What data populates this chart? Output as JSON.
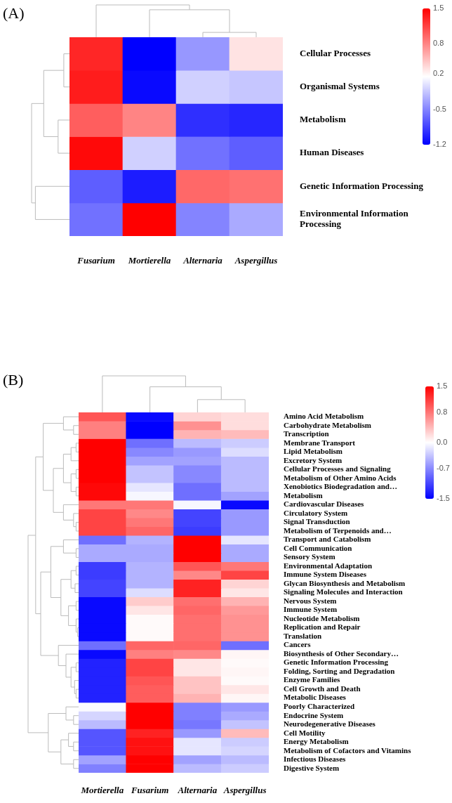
{
  "chart_data": [
    {
      "type": "heatmap",
      "title": "(A)",
      "categories": [
        "Fusarium",
        "Mortierella",
        "Alternaria",
        "Aspergillus"
      ],
      "y_categories": [
        "Cellular Processes",
        "Organismal Systems",
        "Metabolism",
        "Human Diseases",
        "Genetic Information Processing",
        "Environmental Information Processing"
      ],
      "cells": [
        [
          1.3,
          -1.2,
          -0.4,
          0.3
        ],
        [
          1.35,
          -1.15,
          -0.1,
          -0.15
        ],
        [
          1.0,
          0.8,
          -0.95,
          -1.0
        ],
        [
          1.45,
          -0.1,
          -0.6,
          -0.7
        ],
        [
          -0.7,
          -1.05,
          0.95,
          0.9
        ],
        [
          -0.6,
          1.5,
          -0.5,
          -0.3
        ]
      ],
      "clim": [
        -1.2,
        1.5
      ],
      "cticks": [
        -1.2,
        -0.5,
        0.2,
        0.8,
        1.5
      ]
    },
    {
      "type": "heatmap",
      "title": "(B)",
      "categories": [
        "Mortierella",
        "Fusarium",
        "Alternaria",
        "Aspergillus"
      ],
      "y_categories": [
        "Amino Acid Metabolism",
        "Carbohydrate Metabolism",
        "Transcription",
        "Membrane Transport",
        "Lipid Metabolism",
        "Excretory System",
        "Cellular Processes and Signaling",
        "Metabolism of Other Amino Acids",
        "Xenobiotics Biodegradation and…",
        "Metabolism",
        "Cardiovascular Diseases",
        "Circulatory System",
        "Signal Transduction",
        "Metabolism of Terpenoids and…",
        "Transport and Catabolism",
        "Cell Communication",
        "Sensory System",
        "Environmental Adaptation",
        "Immune System Diseases",
        "Glycan Biosynthesis and Metabolism",
        "Signaling Molecules and Interaction",
        "Nervous System",
        "Immune System",
        "Nucleotide Metabolism",
        "Replication and Repair",
        "Translation",
        "Cancers",
        "Biosynthesis of Other Secondary…",
        "Genetic Information Processing",
        "Folding, Sorting and Degradation",
        "Enzyme Families",
        "Cell Growth and Death",
        "Metabolic Diseases",
        "Poorly Characterized",
        "Endocrine System",
        "Neurodegenerative Diseases",
        "Cell Motility",
        "Energy Metabolism",
        "Metabolism of Cofactors and Vitamins",
        "Infectious Diseases",
        "Digestive System"
      ],
      "cells": [
        [
          1.0,
          -1.45,
          0.25,
          0.2
        ],
        [
          0.75,
          -1.5,
          0.65,
          0.2
        ],
        [
          0.75,
          -1.5,
          0.45,
          0.4
        ],
        [
          1.5,
          -0.85,
          -0.4,
          -0.3
        ],
        [
          1.5,
          -0.7,
          -0.6,
          -0.2
        ],
        [
          1.5,
          -0.55,
          -0.55,
          -0.4
        ],
        [
          1.5,
          -0.35,
          -0.7,
          -0.4
        ],
        [
          1.5,
          -0.35,
          -0.7,
          -0.4
        ],
        [
          1.45,
          -0.15,
          -0.85,
          -0.4
        ],
        [
          1.45,
          -0.05,
          -0.85,
          -0.55
        ],
        [
          0.8,
          0.8,
          -0.05,
          -1.45
        ],
        [
          1.1,
          0.7,
          -1.1,
          -0.6
        ],
        [
          1.1,
          0.8,
          -1.1,
          -0.6
        ],
        [
          1.1,
          0.9,
          -1.15,
          -0.6
        ],
        [
          -0.85,
          -0.45,
          1.5,
          -0.15
        ],
        [
          -0.5,
          -0.5,
          1.5,
          -0.5
        ],
        [
          -0.5,
          -0.5,
          1.5,
          -0.5
        ],
        [
          -1.15,
          -0.45,
          1.0,
          0.8
        ],
        [
          -1.15,
          -0.45,
          0.7,
          1.1
        ],
        [
          -1.1,
          -0.45,
          1.3,
          0.25
        ],
        [
          -1.1,
          -0.2,
          1.3,
          0.15
        ],
        [
          -1.45,
          0.3,
          0.85,
          0.45
        ],
        [
          -1.45,
          0.15,
          0.9,
          0.6
        ],
        [
          -1.45,
          0.03,
          0.85,
          0.65
        ],
        [
          -1.45,
          0.03,
          0.85,
          0.65
        ],
        [
          -1.45,
          0.03,
          0.85,
          0.65
        ],
        [
          -0.85,
          0.9,
          0.9,
          -0.85
        ],
        [
          -1.45,
          0.75,
          0.7,
          0.05
        ],
        [
          -1.3,
          1.1,
          0.15,
          0.03
        ],
        [
          -1.3,
          1.1,
          0.15,
          0.05
        ],
        [
          -1.3,
          1.0,
          0.35,
          0.03
        ],
        [
          -1.3,
          0.95,
          0.35,
          0.15
        ],
        [
          -1.3,
          0.95,
          0.45,
          0.05
        ],
        [
          -0.03,
          1.5,
          -0.75,
          -0.6
        ],
        [
          -0.25,
          1.5,
          -0.75,
          -0.5
        ],
        [
          -0.4,
          1.5,
          -0.8,
          -0.35
        ],
        [
          -1.0,
          1.3,
          -0.6,
          0.4
        ],
        [
          -1.0,
          1.4,
          -0.15,
          -0.3
        ],
        [
          -1.0,
          1.4,
          -0.15,
          -0.25
        ],
        [
          -0.55,
          1.5,
          -0.55,
          -0.4
        ],
        [
          -0.75,
          1.5,
          -0.4,
          -0.3
        ]
      ],
      "clim": [
        -1.5,
        1.5
      ],
      "cticks": [
        -1.5,
        -0.7,
        {
          "value": 0,
          "label": "0.0"
        },
        0.8,
        1.5
      ]
    }
  ]
}
